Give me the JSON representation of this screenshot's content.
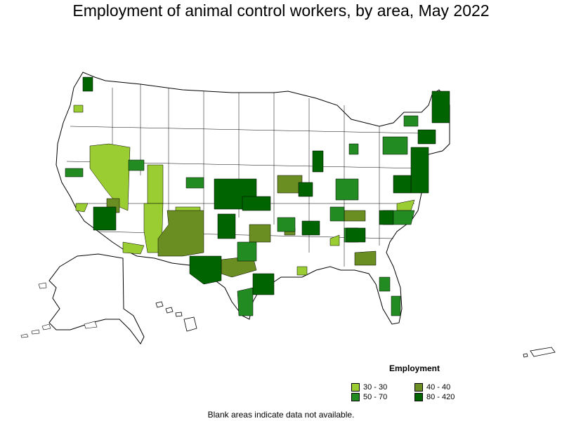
{
  "title": "Employment of animal control workers, by area, May 2022",
  "legend": {
    "title": "Employment",
    "items": [
      {
        "label": "30 - 30",
        "color": "#9acd32"
      },
      {
        "label": "40 - 40",
        "color": "#6b8e23"
      },
      {
        "label": "50 - 70",
        "color": "#228b22"
      },
      {
        "label": "80 - 420",
        "color": "#006400"
      }
    ]
  },
  "footnote": "Blank areas indicate data not available.",
  "colors": {
    "outline": "#000000",
    "blank": "#ffffff"
  }
}
